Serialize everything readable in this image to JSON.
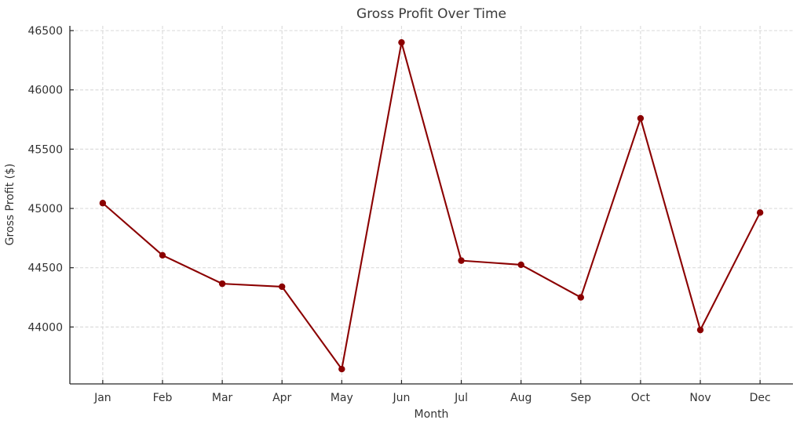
{
  "chart_data": {
    "type": "line",
    "title": "Gross Profit Over Time",
    "xlabel": "Month",
    "ylabel": "Gross Profit ($)",
    "categories": [
      "Jan",
      "Feb",
      "Mar",
      "Apr",
      "May",
      "Jun",
      "Jul",
      "Aug",
      "Sep",
      "Oct",
      "Nov",
      "Dec"
    ],
    "values": [
      45045,
      44605,
      44365,
      44340,
      43645,
      46400,
      44560,
      44525,
      44250,
      45760,
      43975,
      44965
    ],
    "y_ticks": [
      44000,
      44500,
      45000,
      45500,
      46000,
      46500
    ],
    "y_tick_labels": [
      "44000",
      "44500",
      "45000",
      "45500",
      "46000",
      "46500"
    ],
    "ylim": [
      43520,
      46540
    ],
    "grid": true,
    "grid_style": "dashed",
    "legend_position": "none",
    "line_color": "#8B0000",
    "marker": "circle",
    "background_color": "#ffffff",
    "grid_color": "#dcdcdc",
    "spine_color": "#262626",
    "text_color": "#333333",
    "title_color": "#3a3a3a"
  }
}
